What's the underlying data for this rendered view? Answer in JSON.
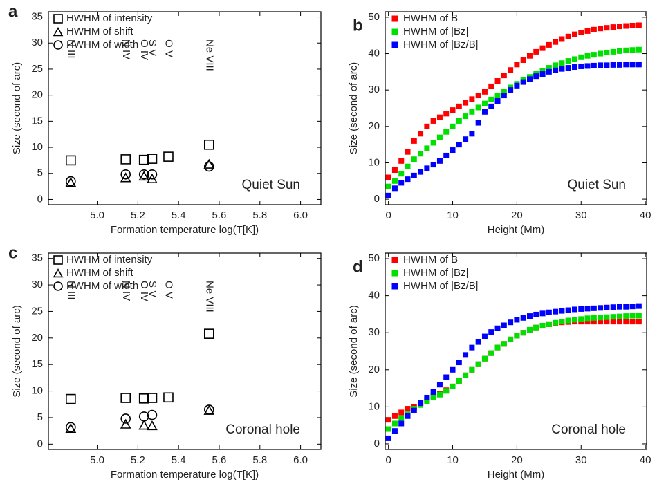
{
  "chart_data": [
    {
      "type": "scatter",
      "label": "a",
      "xlabel": "Formation temperature log(T[K])",
      "ylabel": "Size (second of arc)",
      "annotation": "Quiet Sun",
      "x": [
        4.87,
        5.14,
        5.23,
        5.27,
        5.35,
        5.55
      ],
      "ions": [
        "N III",
        "N IV",
        "O IV",
        "S V",
        "O V",
        "Ne VIII"
      ],
      "series": [
        {
          "name": "HWHM of intensity",
          "marker": "square",
          "filled": false,
          "color": "#000000",
          "values": [
            7.5,
            7.7,
            7.6,
            7.8,
            8.2,
            10.5
          ]
        },
        {
          "name": "HWHM of shift",
          "marker": "triangle",
          "filled": false,
          "color": "#000000",
          "values": [
            3.3,
            4.2,
            4.5,
            4.0,
            null,
            6.8
          ]
        },
        {
          "name": "HWHM of width",
          "marker": "circle",
          "filled": false,
          "color": "#000000",
          "values": [
            3.5,
            4.8,
            4.8,
            4.8,
            null,
            6.3
          ]
        }
      ],
      "xlim": [
        4.76,
        6.1
      ],
      "xticks": [
        {
          "value": 5,
          "label": "5.0"
        },
        5.2,
        5.4,
        5.6,
        5.8,
        {
          "value": 6,
          "label": "6.0"
        }
      ],
      "ylim": [
        -1,
        36
      ],
      "yticks": [
        0,
        5,
        10,
        15,
        20,
        25,
        30,
        35
      ]
    },
    {
      "type": "scatter",
      "label": "b",
      "xlabel": "Height (Mm)",
      "ylabel": "Size (second of arc)",
      "annotation": "Quiet Sun",
      "x": [
        0,
        1,
        2,
        3,
        4,
        5,
        6,
        7,
        8,
        9,
        10,
        11,
        12,
        13,
        14,
        15,
        16,
        17,
        18,
        19,
        20,
        21,
        22,
        23,
        24,
        25,
        26,
        27,
        28,
        29,
        30,
        31,
        32,
        33,
        34,
        35,
        36,
        37,
        38,
        39
      ],
      "series": [
        {
          "name": "HWHM of B",
          "marker": "square",
          "filled": true,
          "color": "#ff0000",
          "values": [
            6,
            8,
            10.5,
            13,
            16,
            18,
            20,
            21.5,
            22.5,
            23.5,
            24.5,
            25.5,
            26.5,
            27.5,
            28.5,
            29.5,
            31,
            32.5,
            34,
            35.5,
            37,
            38.2,
            39.4,
            40.5,
            41.5,
            42.4,
            43.2,
            44,
            44.7,
            45.3,
            45.8,
            46.2,
            46.6,
            46.9,
            47.1,
            47.3,
            47.5,
            47.6,
            47.7,
            47.8
          ]
        },
        {
          "name": "HWHM of |Bz|",
          "marker": "square",
          "filled": true,
          "color": "#00e000",
          "values": [
            3.5,
            5,
            7,
            9,
            11,
            12.5,
            14,
            15.5,
            17,
            18.5,
            20,
            21.5,
            22.8,
            24,
            25.2,
            26.3,
            27.4,
            28.5,
            29.6,
            30.7,
            31.7,
            32.7,
            33.6,
            34.5,
            35.3,
            36.1,
            36.8,
            37.4,
            38,
            38.5,
            39,
            39.4,
            39.7,
            40,
            40.3,
            40.5,
            40.7,
            40.9,
            41,
            41.1
          ]
        },
        {
          "name": "HWHM of |Bz/B|",
          "marker": "square",
          "filled": true,
          "color": "#0000ff",
          "values": [
            1,
            3,
            4.5,
            5.5,
            6.5,
            7.5,
            8.5,
            9.5,
            10.5,
            12,
            13.5,
            15,
            16.5,
            18,
            21,
            24,
            25.5,
            27,
            28.5,
            30,
            31.2,
            32.2,
            33,
            33.8,
            34.4,
            35,
            35.4,
            35.8,
            36.1,
            36.3,
            36.5,
            36.6,
            36.7,
            36.8,
            36.8,
            36.9,
            36.9,
            37,
            37,
            37
          ]
        }
      ],
      "xlim": [
        -0.5,
        40.2
      ],
      "xticks": [
        0,
        10,
        20,
        30,
        40
      ],
      "ylim": [
        -1.5,
        51.5
      ],
      "yticks": [
        0,
        10,
        20,
        30,
        40,
        50
      ]
    },
    {
      "type": "scatter",
      "label": "c",
      "xlabel": "Formation temperature log(T[K])",
      "ylabel": "Size (second of arc)",
      "annotation": "Coronal hole",
      "x": [
        4.87,
        5.14,
        5.23,
        5.27,
        5.35,
        5.55
      ],
      "ions": [
        "N III",
        "N IV",
        "O IV",
        "S V",
        "O V",
        "Ne VIII"
      ],
      "series": [
        {
          "name": "HWHM of intensity",
          "marker": "square",
          "filled": false,
          "color": "#000000",
          "values": [
            8.5,
            8.7,
            8.6,
            8.7,
            8.8,
            20.8
          ]
        },
        {
          "name": "HWHM of shift",
          "marker": "triangle",
          "filled": false,
          "color": "#000000",
          "values": [
            3.0,
            3.8,
            3.6,
            3.5,
            null,
            6.4
          ]
        },
        {
          "name": "HWHM of width",
          "marker": "circle",
          "filled": false,
          "color": "#000000",
          "values": [
            3.2,
            4.8,
            5.2,
            5.5,
            null,
            6.5
          ]
        }
      ],
      "xlim": [
        4.76,
        6.1
      ],
      "xticks": [
        {
          "value": 5,
          "label": "5.0"
        },
        5.2,
        5.4,
        5.6,
        5.8,
        {
          "value": 6,
          "label": "6.0"
        }
      ],
      "ylim": [
        -1,
        36
      ],
      "yticks": [
        0,
        5,
        10,
        15,
        20,
        25,
        30,
        35
      ]
    },
    {
      "type": "scatter",
      "label": "d",
      "xlabel": "Height (Mm)",
      "ylabel": "Size (second of arc)",
      "annotation": "Coronal hole",
      "x": [
        0,
        1,
        2,
        3,
        4,
        5,
        6,
        7,
        8,
        9,
        10,
        11,
        12,
        13,
        14,
        15,
        16,
        17,
        18,
        19,
        20,
        21,
        22,
        23,
        24,
        25,
        26,
        27,
        28,
        29,
        30,
        31,
        32,
        33,
        34,
        35,
        36,
        37,
        38,
        39
      ],
      "series": [
        {
          "name": "HWHM of B",
          "marker": "square",
          "filled": true,
          "color": "#ff0000",
          "values": [
            6.5,
            7.5,
            8.5,
            9.5,
            10,
            11,
            12,
            12.8,
            13.5,
            14.5,
            15.5,
            17,
            18.5,
            20,
            21.5,
            23,
            24.5,
            26,
            27,
            28.2,
            29.2,
            30,
            30.8,
            31.4,
            31.9,
            32.3,
            32.6,
            32.8,
            32.9,
            33,
            33,
            33,
            33,
            33,
            33,
            33,
            33,
            33,
            33,
            33
          ]
        },
        {
          "name": "HWHM of |Bz|",
          "marker": "square",
          "filled": true,
          "color": "#00e000",
          "values": [
            4,
            5.5,
            7,
            8,
            9.5,
            10.5,
            11.5,
            12.5,
            13.3,
            14.3,
            15.5,
            17,
            18.5,
            20,
            21.5,
            23,
            24.5,
            26,
            27,
            28.2,
            29.2,
            30,
            30.8,
            31.4,
            31.9,
            32.3,
            32.7,
            33,
            33.3,
            33.5,
            33.7,
            33.9,
            34,
            34.1,
            34.2,
            34.3,
            34.4,
            34.5,
            34.6,
            34.6
          ]
        },
        {
          "name": "HWHM of |Bz/B|",
          "marker": "square",
          "filled": true,
          "color": "#0000ff",
          "values": [
            1.5,
            3.5,
            5.5,
            7.5,
            9,
            11,
            12.5,
            14,
            16,
            18,
            20,
            22,
            24,
            26,
            27.5,
            29,
            30.2,
            31.2,
            32,
            32.8,
            33.5,
            34,
            34.5,
            34.9,
            35.2,
            35.5,
            35.7,
            35.9,
            36.1,
            36.3,
            36.4,
            36.5,
            36.6,
            36.7,
            36.8,
            36.9,
            37,
            37,
            37.1,
            37.2
          ]
        }
      ],
      "xlim": [
        -0.5,
        40.2
      ],
      "xticks": [
        0,
        10,
        20,
        30,
        40
      ],
      "ylim": [
        -1.5,
        51.5
      ],
      "yticks": [
        0,
        10,
        20,
        30,
        40,
        50
      ]
    }
  ]
}
